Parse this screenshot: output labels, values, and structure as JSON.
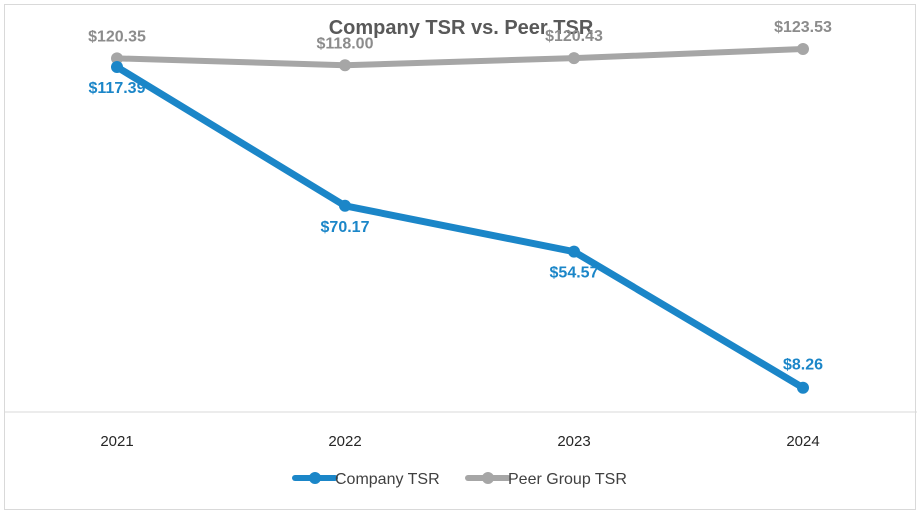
{
  "chart_data": {
    "type": "line",
    "title": "Company TSR vs. Peer TSR",
    "categories": [
      "2021",
      "2022",
      "2023",
      "2024"
    ],
    "series": [
      {
        "name": "Company TSR",
        "color": "#1b86c8",
        "values": [
          117.39,
          70.17,
          54.57,
          8.26
        ],
        "labels": [
          "$117.39",
          "$70.17",
          "$54.57",
          "$8.26"
        ]
      },
      {
        "name": "Peer Group TSR",
        "color": "#a6a6a6",
        "values": [
          120.35,
          118.0,
          120.43,
          123.53
        ],
        "labels": [
          "$120.35",
          "$118.00",
          "$120.43",
          "$123.53"
        ]
      }
    ],
    "ylim": [
      0,
      130
    ],
    "grid": false,
    "legend": "bottom",
    "xlabel": "",
    "ylabel": ""
  }
}
